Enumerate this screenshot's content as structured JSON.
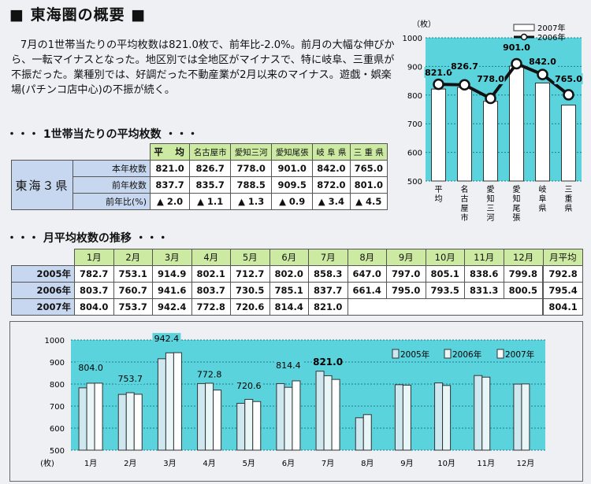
{
  "page_title": "東海圏の概要",
  "summary": "7月の1世帯当たりの平均枚数は821.0枚で、前年比-2.0%。前月の大幅な伸びから、一転マイナスとなった。地区別では全地区がマイナスで、特に岐阜、三重県が不振だった。業種別では、好調だった不動産業が2月以来のマイナス。遊戯・娯楽場(パチンコ店中心)の不振が続く。",
  "section1_title": "・・・ 1世帯当たりの平均枚数 ・・・",
  "section2_title": "・・・ 月平均枚数の推移 ・・・",
  "area_table": {
    "region_label": "東海３県",
    "headers": [
      "平　均",
      "名古屋市",
      "愛知三河",
      "愛知尾張",
      "岐 阜 県",
      "三 重 県"
    ],
    "rows": [
      {
        "label": "本年枚数",
        "values": [
          "821.0",
          "826.7",
          "778.0",
          "901.0",
          "842.0",
          "765.0"
        ]
      },
      {
        "label": "前年枚数",
        "values": [
          "837.7",
          "835.7",
          "788.5",
          "909.5",
          "872.0",
          "801.0"
        ]
      },
      {
        "label": "前年比(%)",
        "values": [
          "▲ 2.0",
          "▲ 1.1",
          "▲ 1.3",
          "▲ 0.9",
          "▲ 3.4",
          "▲ 4.5"
        ]
      }
    ]
  },
  "monthly_table": {
    "headers": [
      "1月",
      "2月",
      "3月",
      "4月",
      "5月",
      "6月",
      "7月",
      "8月",
      "9月",
      "10月",
      "11月",
      "12月",
      "月平均"
    ],
    "rows": [
      {
        "label": "2005年",
        "values": [
          "782.7",
          "753.1",
          "914.9",
          "802.1",
          "712.7",
          "802.0",
          "858.3",
          "647.0",
          "797.0",
          "805.1",
          "838.6",
          "799.8",
          "792.8"
        ]
      },
      {
        "label": "2006年",
        "values": [
          "803.7",
          "760.7",
          "941.6",
          "803.7",
          "730.5",
          "785.1",
          "837.7",
          "661.4",
          "795.0",
          "793.5",
          "831.3",
          "800.5",
          "795.4"
        ]
      },
      {
        "label": "2007年",
        "values": [
          "804.0",
          "753.7",
          "942.4",
          "772.8",
          "720.6",
          "814.4",
          "821.0",
          "",
          "",
          "",
          "",
          "",
          "804.1"
        ]
      }
    ]
  },
  "chart_data": [
    {
      "type": "bar",
      "unit_label": "（枚）",
      "categories": [
        "平均",
        "名古屋市",
        "愛知三河",
        "愛知尾張",
        "岐阜県",
        "三重県"
      ],
      "series": [
        {
          "name": "2007年",
          "kind": "bar",
          "values": [
            821.0,
            826.7,
            778.0,
            901.0,
            842.0,
            765.0
          ]
        },
        {
          "name": "2006年",
          "kind": "line",
          "values": [
            837.7,
            835.7,
            788.5,
            909.5,
            872.0,
            801.0
          ]
        }
      ],
      "data_labels": [
        "821.0",
        "826.7",
        "778.0",
        "901.0",
        "842.0",
        "765.0"
      ],
      "ylim": [
        500,
        1000
      ],
      "yticks": [
        "1000",
        "900",
        "800",
        "700",
        "600",
        "500"
      ],
      "legend": "top-right"
    },
    {
      "type": "bar",
      "unit_label": "(枚)",
      "categories": [
        "1月",
        "2月",
        "3月",
        "4月",
        "5月",
        "6月",
        "7月",
        "8月",
        "9月",
        "10月",
        "11月",
        "12月"
      ],
      "series": [
        {
          "name": "2005年",
          "values": [
            782.7,
            753.1,
            914.9,
            802.1,
            712.7,
            802.0,
            858.3,
            647.0,
            797.0,
            805.1,
            838.6,
            799.8
          ]
        },
        {
          "name": "2006年",
          "values": [
            803.7,
            760.7,
            941.6,
            803.7,
            730.5,
            785.1,
            837.7,
            661.4,
            795.0,
            793.5,
            831.3,
            800.5
          ]
        },
        {
          "name": "2007年",
          "values": [
            804.0,
            753.7,
            942.4,
            772.8,
            720.6,
            814.4,
            821.0,
            null,
            null,
            null,
            null,
            null
          ]
        }
      ],
      "data_labels": [
        "804.0",
        "753.7",
        "942.4",
        "772.8",
        "720.6",
        "814.4",
        "821.0"
      ],
      "ylim": [
        500,
        1000
      ],
      "yticks": [
        "1000",
        "900",
        "800",
        "700",
        "600",
        "500"
      ],
      "legend": "top-right"
    }
  ],
  "colors": {
    "header_green": "#cdeaa3",
    "label_blue": "#c7d7ef",
    "plot_bg": "#5ad3dc"
  }
}
